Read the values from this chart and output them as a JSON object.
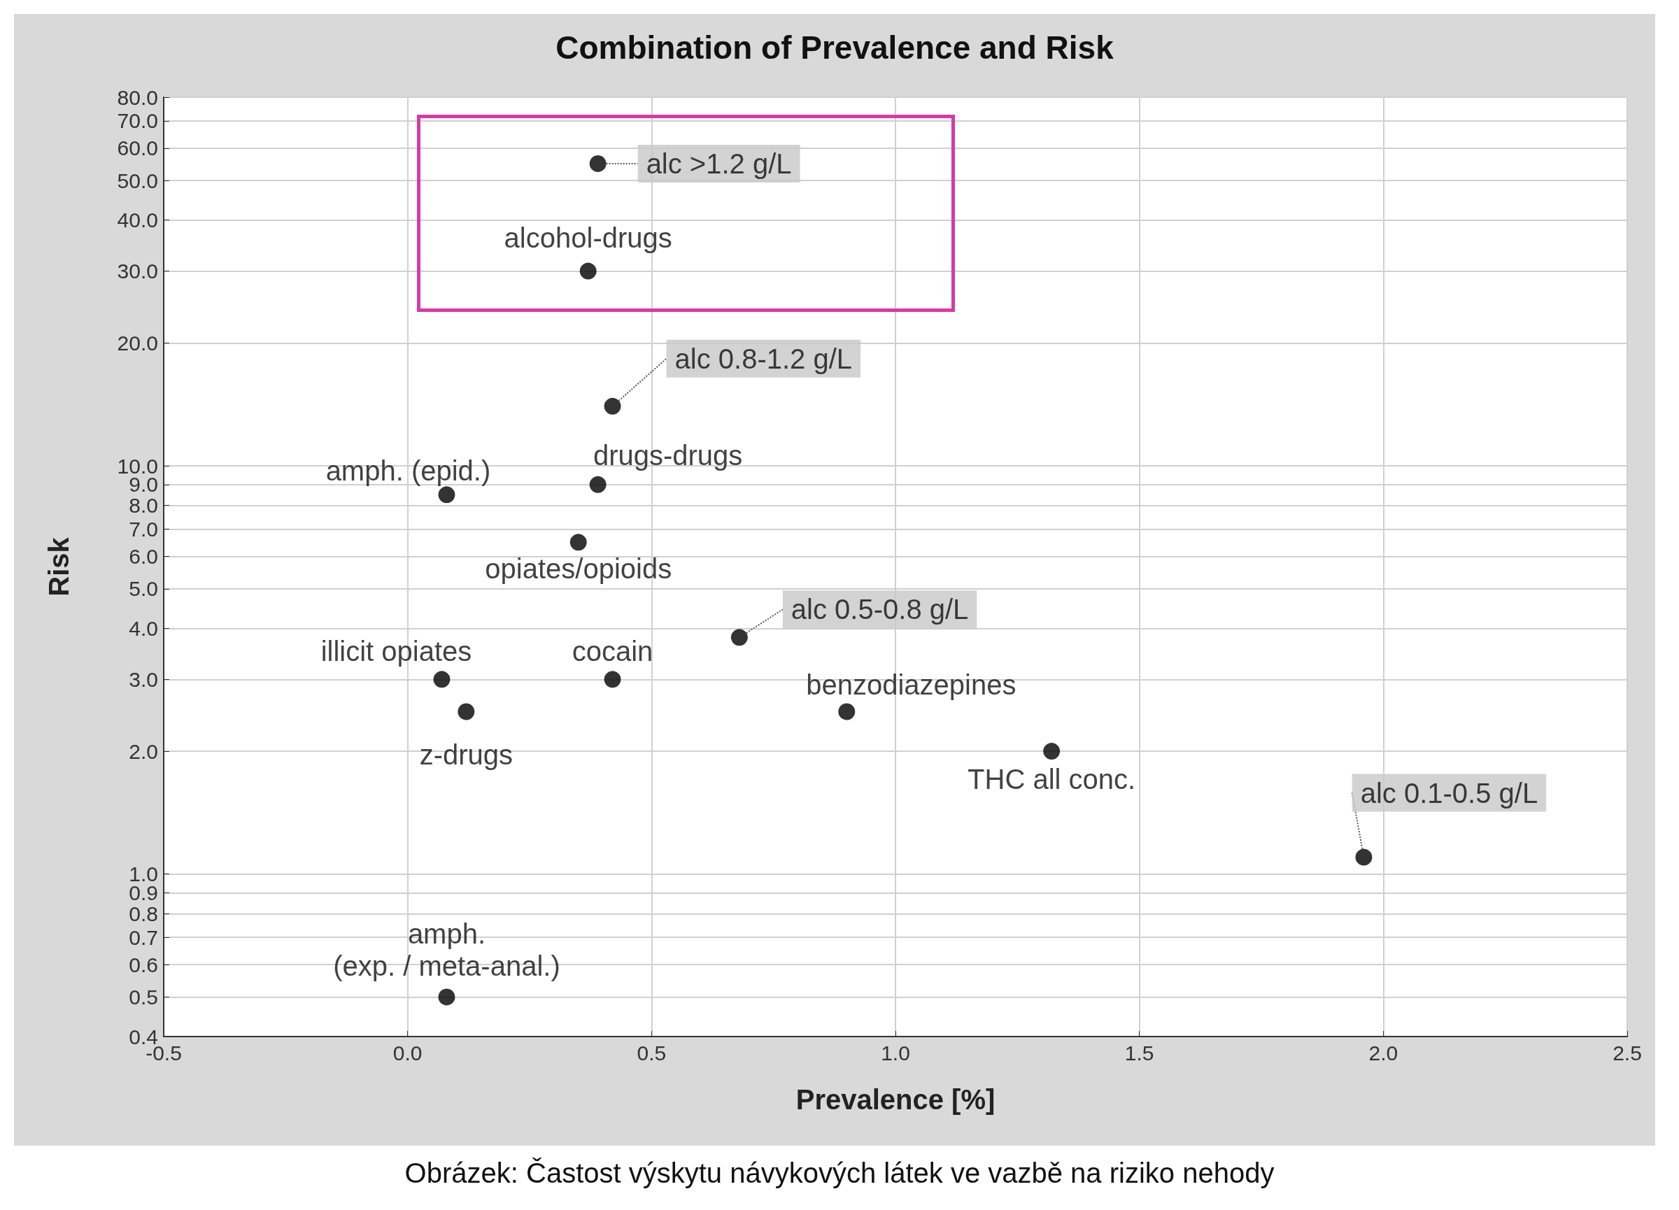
{
  "chart_data": {
    "type": "scatter",
    "title": "Combination of Prevalence and Risk",
    "xlabel": "Prevalence [%]",
    "ylabel": "Risk",
    "log": "y",
    "grid": true,
    "marker": "circle",
    "xlim": [
      -0.5,
      2.5
    ],
    "xticks": [
      -0.5,
      {
        "value": 0,
        "label": "0.0"
      },
      0.5,
      {
        "value": 1,
        "label": "1.0"
      },
      1.5,
      {
        "value": 2,
        "label": "2.0"
      },
      2.5
    ],
    "ylim": [
      0.4,
      80
    ],
    "yticks": [
      0.4,
      0.5,
      0.6,
      0.7,
      0.8,
      0.9,
      {
        "value": 1,
        "label": "1.0"
      },
      {
        "value": 2,
        "label": "2.0"
      },
      {
        "value": 3,
        "label": "3.0"
      },
      {
        "value": 4,
        "label": "4.0"
      },
      {
        "value": 5,
        "label": "5.0"
      },
      {
        "value": 6,
        "label": "6.0"
      },
      {
        "value": 7,
        "label": "7.0"
      },
      {
        "value": 8,
        "label": "8.0"
      },
      {
        "value": 9,
        "label": "9.0"
      },
      {
        "value": 10,
        "label": "10.0"
      },
      {
        "value": 20,
        "label": "20.0"
      },
      {
        "value": 30,
        "label": "30.0"
      },
      {
        "value": 40,
        "label": "40.0"
      },
      {
        "value": 50,
        "label": "50.0"
      },
      {
        "value": 60,
        "label": "60.0"
      },
      {
        "value": 70,
        "label": "70.0"
      },
      {
        "value": 80,
        "label": "80.0"
      }
    ],
    "series": [
      {
        "color": "#000000",
        "x": [
          0.39,
          0.37,
          0.42,
          0.39,
          0.08,
          0.35,
          0.68,
          0.07,
          0.42,
          0.12,
          0.9,
          1.32,
          1.96,
          0.08
        ],
        "values": [
          55,
          30,
          14,
          9,
          8.5,
          6.5,
          3.8,
          3,
          3,
          2.5,
          2.5,
          2,
          1.1,
          0.5
        ]
      }
    ],
    "annotations": [
      {
        "text": "alc >1.2 g/L",
        "x": 0.39,
        "y": 55
      },
      {
        "text": "alcohol-drugs",
        "x": 0.37,
        "y": 30
      },
      {
        "text": "alc 0.8-1.2 g/L",
        "x": 0.42,
        "y": 14
      },
      {
        "text": "drugs-drugs",
        "x": 0.39,
        "y": 9
      },
      {
        "text": "amph. (epid.)",
        "x": 0.08,
        "y": 8.5
      },
      {
        "text": "opiates/opioids",
        "x": 0.35,
        "y": 6.5
      },
      {
        "text": "alc 0.5-0.8 g/L",
        "x": 0.68,
        "y": 3.8
      },
      {
        "text": "illicit opiates",
        "x": 0.07,
        "y": 3
      },
      {
        "text": "cocain",
        "x": 0.42,
        "y": 3
      },
      {
        "text": "z-drugs",
        "x": 0.12,
        "y": 2.5
      },
      {
        "text": "benzodiazepines",
        "x": 0.9,
        "y": 2.5
      },
      {
        "text": "THC all conc.",
        "x": 1.32,
        "y": 2
      },
      {
        "text": "alc 0.1-0.5 g/L",
        "x": 1.96,
        "y": 1.1
      },
      {
        "text": "amph.\n(exp. / meta-anal.)",
        "x": 0.08,
        "y": 0.5
      },
      "Obrázek: Častost výskytu návykových látek ve vazbě na riziko nehody"
    ]
  }
}
